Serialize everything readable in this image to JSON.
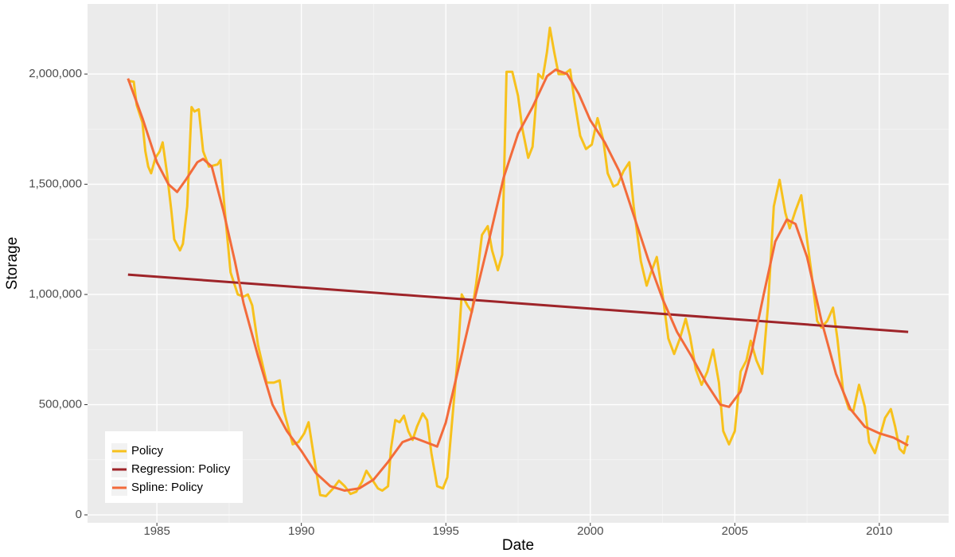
{
  "chart_data": {
    "type": "line",
    "x_label": "Date",
    "y_label": "Storage",
    "xlim": [
      1982.6,
      2012.4
    ],
    "ylim": [
      -36000,
      2318000
    ],
    "xticks": [
      1985,
      1990,
      1995,
      2000,
      2005,
      2010
    ],
    "yticks": [
      {
        "value": 0,
        "label": "0"
      },
      {
        "value": 500000,
        "label": "500,000"
      },
      {
        "value": 1000000,
        "label": "1,000,000"
      },
      {
        "value": 1500000,
        "label": "1,500,000"
      },
      {
        "value": 2000000,
        "label": "2,000,000"
      }
    ],
    "grid": true,
    "legend_position": "bottom-left",
    "series": [
      {
        "name": "Policy",
        "color": "#f7c11c",
        "x": [
          1984.0,
          1984.2,
          1984.3,
          1984.5,
          1984.6,
          1984.7,
          1984.8,
          1984.95,
          1985.1,
          1985.2,
          1985.35,
          1985.5,
          1985.6,
          1985.8,
          1985.9,
          1986.05,
          1986.2,
          1986.3,
          1986.45,
          1986.6,
          1986.8,
          1986.95,
          1987.1,
          1987.2,
          1987.35,
          1987.55,
          1987.8,
          1988.0,
          1988.15,
          1988.3,
          1988.5,
          1988.8,
          1989.05,
          1989.25,
          1989.4,
          1989.7,
          1989.9,
          1990.1,
          1990.25,
          1990.45,
          1990.65,
          1990.85,
          1991.1,
          1991.3,
          1991.5,
          1991.7,
          1991.9,
          1992.1,
          1992.25,
          1992.45,
          1992.65,
          1992.8,
          1993.0,
          1993.1,
          1993.25,
          1993.4,
          1993.55,
          1993.7,
          1993.85,
          1994.0,
          1994.2,
          1994.35,
          1994.5,
          1994.7,
          1994.9,
          1995.05,
          1995.2,
          1995.4,
          1995.55,
          1995.75,
          1995.9,
          1996.05,
          1996.25,
          1996.45,
          1996.6,
          1996.8,
          1996.95,
          1997.1,
          1997.3,
          1997.5,
          1997.65,
          1997.85,
          1998.0,
          1998.2,
          1998.35,
          1998.5,
          1998.6,
          1998.75,
          1998.9,
          1999.1,
          1999.3,
          1999.45,
          1999.65,
          1999.85,
          2000.05,
          2000.25,
          2000.45,
          2000.6,
          2000.8,
          2000.95,
          2001.15,
          2001.35,
          2001.5,
          2001.75,
          2001.95,
          2002.1,
          2002.3,
          2002.5,
          2002.7,
          2002.9,
          2003.1,
          2003.3,
          2003.45,
          2003.65,
          2003.85,
          2004.05,
          2004.25,
          2004.45,
          2004.6,
          2004.8,
          2005.0,
          2005.2,
          2005.4,
          2005.55,
          2005.75,
          2005.95,
          2006.15,
          2006.35,
          2006.55,
          2006.75,
          2006.9,
          2007.1,
          2007.3,
          2007.45,
          2007.65,
          2007.85,
          2008.0,
          2008.2,
          2008.4,
          2008.55,
          2008.75,
          2008.95,
          2009.1,
          2009.3,
          2009.5,
          2009.65,
          2009.85,
          2010.05,
          2010.2,
          2010.4,
          2010.55,
          2010.7,
          2010.85,
          2011.0
        ],
        "values": [
          1970000,
          1965000,
          1860000,
          1780000,
          1650000,
          1580000,
          1550000,
          1620000,
          1650000,
          1690000,
          1550000,
          1380000,
          1250000,
          1200000,
          1230000,
          1400000,
          1850000,
          1830000,
          1840000,
          1650000,
          1580000,
          1585000,
          1590000,
          1610000,
          1380000,
          1100000,
          1000000,
          990000,
          1000000,
          950000,
          770000,
          600000,
          600000,
          610000,
          470000,
          320000,
          330000,
          370000,
          420000,
          250000,
          90000,
          85000,
          120000,
          155000,
          130000,
          95000,
          105000,
          150000,
          200000,
          160000,
          120000,
          110000,
          130000,
          300000,
          430000,
          420000,
          450000,
          380000,
          340000,
          400000,
          460000,
          430000,
          280000,
          130000,
          120000,
          170000,
          400000,
          700000,
          1000000,
          950000,
          920000,
          1050000,
          1270000,
          1310000,
          1200000,
          1110000,
          1180000,
          2010000,
          2010000,
          1900000,
          1750000,
          1620000,
          1670000,
          2000000,
          1980000,
          2100000,
          2210000,
          2100000,
          2000000,
          2000000,
          2020000,
          1880000,
          1720000,
          1660000,
          1680000,
          1800000,
          1700000,
          1550000,
          1490000,
          1500000,
          1560000,
          1600000,
          1400000,
          1150000,
          1040000,
          1100000,
          1170000,
          1000000,
          800000,
          730000,
          800000,
          890000,
          810000,
          660000,
          590000,
          650000,
          750000,
          600000,
          380000,
          320000,
          380000,
          650000,
          700000,
          790000,
          700000,
          640000,
          950000,
          1400000,
          1520000,
          1370000,
          1300000,
          1380000,
          1450000,
          1300000,
          1100000,
          880000,
          850000,
          880000,
          940000,
          800000,
          560000,
          480000,
          470000,
          590000,
          490000,
          330000,
          280000,
          370000,
          440000,
          480000,
          400000,
          300000,
          280000,
          360000
        ]
      },
      {
        "name": "Regression: Policy",
        "color": "#9e2429",
        "x": [
          1984.0,
          2011.0
        ],
        "values": [
          1090000,
          830000
        ]
      },
      {
        "name": "Spline: Policy",
        "color": "#f36b3b",
        "x": [
          1984.0,
          1984.5,
          1985.0,
          1985.4,
          1985.7,
          1986.0,
          1986.4,
          1986.6,
          1986.9,
          1987.3,
          1987.7,
          1988.0,
          1988.5,
          1989.0,
          1989.5,
          1990.0,
          1990.5,
          1991.0,
          1991.5,
          1992.0,
          1992.5,
          1993.0,
          1993.5,
          1993.9,
          1994.3,
          1994.7,
          1995.0,
          1995.5,
          1996.0,
          1996.5,
          1997.0,
          1997.5,
          1998.0,
          1998.5,
          1998.8,
          1999.2,
          1999.6,
          2000.0,
          2000.5,
          2001.0,
          2001.5,
          2002.0,
          2002.5,
          2003.0,
          2003.5,
          2004.0,
          2004.5,
          2004.8,
          2005.2,
          2005.6,
          2006.0,
          2006.4,
          2006.8,
          2007.1,
          2007.5,
          2008.0,
          2008.5,
          2009.0,
          2009.5,
          2010.0,
          2010.5,
          2011.0
        ],
        "values": [
          1980000,
          1800000,
          1600000,
          1500000,
          1465000,
          1520000,
          1600000,
          1615000,
          1580000,
          1380000,
          1150000,
          960000,
          720000,
          500000,
          380000,
          290000,
          190000,
          130000,
          110000,
          120000,
          160000,
          240000,
          330000,
          350000,
          330000,
          310000,
          420000,
          700000,
          980000,
          1250000,
          1530000,
          1730000,
          1850000,
          1990000,
          2020000,
          2000000,
          1910000,
          1790000,
          1690000,
          1560000,
          1360000,
          1160000,
          980000,
          830000,
          720000,
          600000,
          500000,
          490000,
          560000,
          750000,
          1000000,
          1240000,
          1340000,
          1320000,
          1170000,
          880000,
          640000,
          480000,
          400000,
          370000,
          350000,
          315000
        ]
      }
    ]
  }
}
